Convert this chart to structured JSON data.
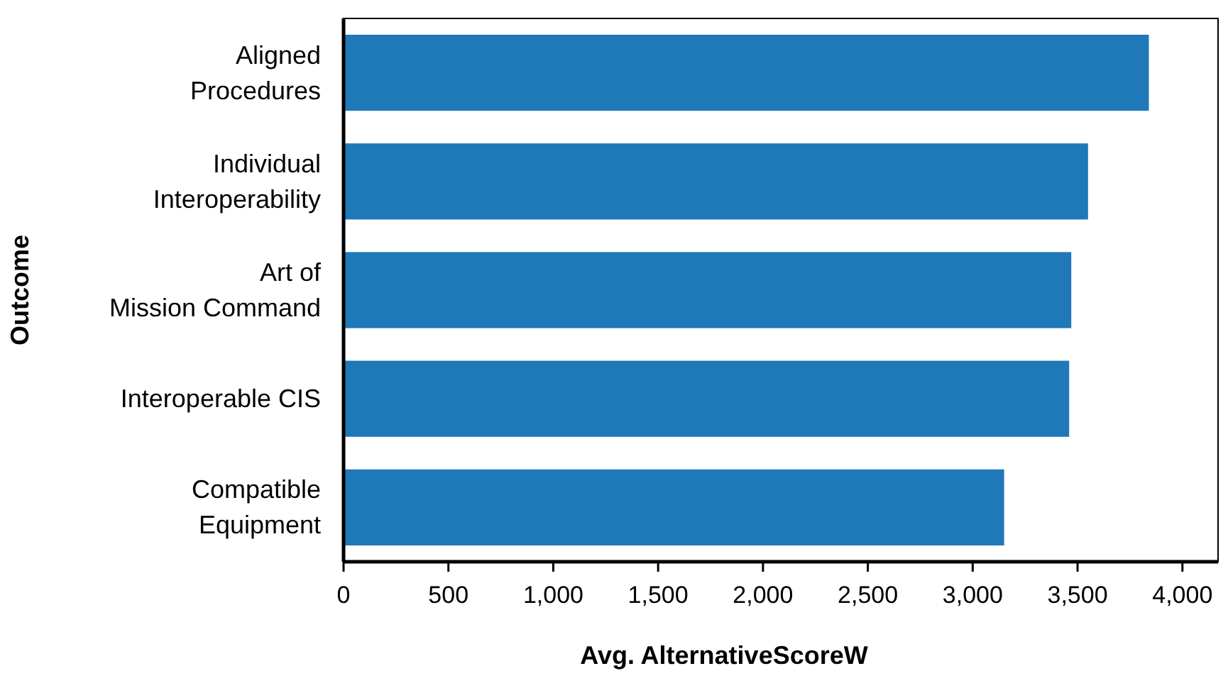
{
  "chart_data": {
    "type": "bar",
    "orientation": "horizontal",
    "xlabel": "Avg. AlternativeScoreW",
    "ylabel": "Outcome",
    "categories": [
      "Aligned\nProcedures",
      "Individual\nInteroperability",
      "Art of\nMission Command",
      "Interoperable CIS",
      "Compatible\nEquipment"
    ],
    "values": [
      3840,
      3550,
      3470,
      3460,
      3150
    ],
    "color": "#1f78b8",
    "xlim": [
      0,
      4170
    ],
    "xticks": [
      0,
      {
        "value": 500,
        "label": "500"
      },
      {
        "value": 1000,
        "label": "1,000"
      },
      {
        "value": 1500,
        "label": "1,500"
      },
      {
        "value": 2000,
        "label": "2,000"
      },
      {
        "value": 2500,
        "label": "2,500"
      },
      {
        "value": 3000,
        "label": "3,000"
      },
      {
        "value": 3500,
        "label": "3,500"
      },
      {
        "value": 4000,
        "label": "4,000"
      }
    ],
    "grid": false
  }
}
